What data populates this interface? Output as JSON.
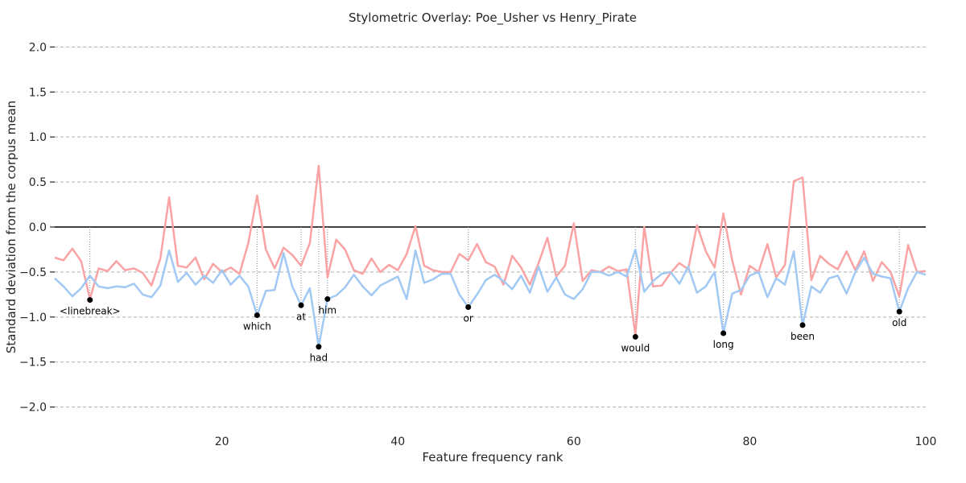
{
  "chart_data": {
    "type": "line",
    "title": "Stylometric Overlay: Poe_Usher vs Henry_Pirate",
    "xlabel": "Feature frequency rank",
    "ylabel": "Standard deviation from the corpus mean",
    "xlim": [
      1,
      100
    ],
    "ylim": [
      -2.2,
      2.2
    ],
    "xticks": [
      20,
      40,
      60,
      80,
      100
    ],
    "yticks": [
      -2.0,
      -1.5,
      -1.0,
      -0.5,
      0.0,
      0.5,
      1.0,
      1.5,
      2.0
    ],
    "ytick_labels": [
      "−2.0",
      "−1.5",
      "−1.0",
      "−0.5",
      "0.0",
      "0.5",
      "1.0",
      "1.5",
      "2.0"
    ],
    "grid": "horizontal dashed",
    "x": [
      1,
      2,
      3,
      4,
      5,
      6,
      7,
      8,
      9,
      10,
      11,
      12,
      13,
      14,
      15,
      16,
      17,
      18,
      19,
      20,
      21,
      22,
      23,
      24,
      25,
      26,
      27,
      28,
      29,
      30,
      31,
      32,
      33,
      34,
      35,
      36,
      37,
      38,
      39,
      40,
      41,
      42,
      43,
      44,
      45,
      46,
      47,
      48,
      49,
      50,
      51,
      52,
      53,
      54,
      55,
      56,
      57,
      58,
      59,
      60,
      61,
      62,
      63,
      64,
      65,
      66,
      67,
      68,
      69,
      70,
      71,
      72,
      73,
      74,
      75,
      76,
      77,
      78,
      79,
      80,
      81,
      82,
      83,
      84,
      85,
      86,
      87,
      88,
      89,
      90,
      91,
      92,
      93,
      94,
      95,
      96,
      97,
      98,
      99,
      100
    ],
    "series": [
      {
        "color": "#f9a3a4",
        "values": [
          -0.34,
          -0.37,
          -0.24,
          -0.38,
          -0.8,
          -0.46,
          -0.49,
          -0.38,
          -0.48,
          -0.46,
          -0.51,
          -0.65,
          -0.35,
          0.33,
          -0.43,
          -0.45,
          -0.34,
          -0.58,
          -0.41,
          -0.5,
          -0.45,
          -0.52,
          -0.18,
          0.35,
          -0.25,
          -0.46,
          -0.23,
          -0.31,
          -0.43,
          -0.18,
          0.68,
          -0.56,
          -0.14,
          -0.25,
          -0.48,
          -0.52,
          -0.35,
          -0.5,
          -0.42,
          -0.48,
          -0.3,
          0.01,
          -0.43,
          -0.48,
          -0.5,
          -0.5,
          -0.3,
          -0.37,
          -0.19,
          -0.39,
          -0.44,
          -0.64,
          -0.32,
          -0.45,
          -0.64,
          -0.4,
          -0.12,
          -0.55,
          -0.43,
          0.04,
          -0.6,
          -0.48,
          -0.5,
          -0.44,
          -0.49,
          -0.47,
          -1.2,
          0.0,
          -0.66,
          -0.65,
          -0.51,
          -0.4,
          -0.47,
          0.02,
          -0.27,
          -0.45,
          0.15,
          -0.37,
          -0.75,
          -0.43,
          -0.5,
          -0.19,
          -0.56,
          -0.42,
          0.51,
          0.55,
          -0.59,
          -0.32,
          -0.41,
          -0.47,
          -0.27,
          -0.48,
          -0.27,
          -0.6,
          -0.39,
          -0.5,
          -0.77,
          -0.2,
          -0.5,
          -0.49
        ]
      },
      {
        "color": "#a1c9f4",
        "values": [
          -0.57,
          -0.66,
          -0.77,
          -0.68,
          -0.54,
          -0.66,
          -0.68,
          -0.66,
          -0.67,
          -0.63,
          -0.75,
          -0.78,
          -0.65,
          -0.26,
          -0.61,
          -0.51,
          -0.64,
          -0.54,
          -0.62,
          -0.48,
          -0.64,
          -0.54,
          -0.66,
          -0.98,
          -0.71,
          -0.7,
          -0.29,
          -0.66,
          -0.87,
          -0.68,
          -1.33,
          -0.8,
          -0.76,
          -0.67,
          -0.53,
          -0.66,
          -0.76,
          -0.65,
          -0.6,
          -0.55,
          -0.8,
          -0.26,
          -0.62,
          -0.58,
          -0.52,
          -0.52,
          -0.75,
          -0.89,
          -0.75,
          -0.59,
          -0.53,
          -0.6,
          -0.69,
          -0.54,
          -0.73,
          -0.44,
          -0.72,
          -0.56,
          -0.75,
          -0.8,
          -0.69,
          -0.5,
          -0.5,
          -0.54,
          -0.5,
          -0.55,
          -0.25,
          -0.72,
          -0.6,
          -0.52,
          -0.5,
          -0.63,
          -0.44,
          -0.73,
          -0.66,
          -0.5,
          -1.18,
          -0.74,
          -0.7,
          -0.54,
          -0.5,
          -0.78,
          -0.57,
          -0.64,
          -0.27,
          -1.09,
          -0.66,
          -0.73,
          -0.57,
          -0.54,
          -0.74,
          -0.5,
          -0.34,
          -0.52,
          -0.55,
          -0.57,
          -0.94,
          -0.68,
          -0.5,
          -0.53
        ]
      }
    ],
    "annotations": [
      {
        "x": 5,
        "y": -0.81,
        "label": "<linebreak>",
        "label_pos": "below"
      },
      {
        "x": 24,
        "y": -0.98,
        "label": "which",
        "label_pos": "below"
      },
      {
        "x": 29,
        "y": -0.87,
        "label": "at",
        "label_pos": "below"
      },
      {
        "x": 31,
        "y": -1.33,
        "label": "had",
        "label_pos": "below"
      },
      {
        "x": 32,
        "y": -0.8,
        "label": "him",
        "label_pos": "below"
      },
      {
        "x": 48,
        "y": -0.89,
        "label": "or",
        "label_pos": "below"
      },
      {
        "x": 67,
        "y": -1.22,
        "label": "would",
        "label_pos": "below"
      },
      {
        "x": 77,
        "y": -1.18,
        "label": "long",
        "label_pos": "below"
      },
      {
        "x": 86,
        "y": -1.09,
        "label": "been",
        "label_pos": "below"
      },
      {
        "x": 97,
        "y": -0.94,
        "label": "old",
        "label_pos": "below"
      }
    ]
  }
}
